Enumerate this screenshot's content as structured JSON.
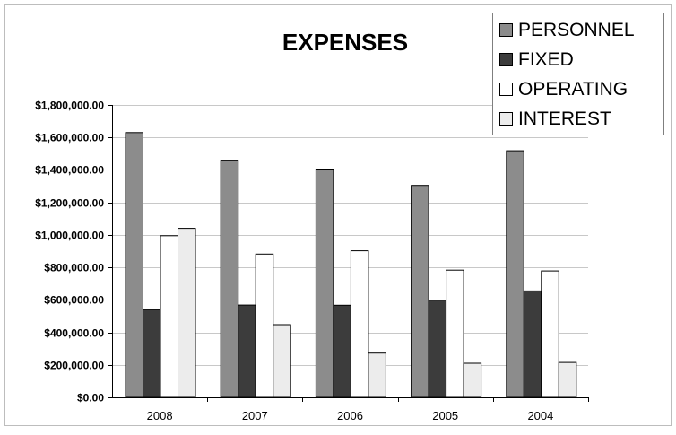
{
  "chart_data": {
    "type": "bar",
    "title": "EXPENSES",
    "xlabel": "",
    "ylabel": "",
    "categories": [
      "2008",
      "2007",
      "2006",
      "2005",
      "2004"
    ],
    "series": [
      {
        "name": "PERSONNEL",
        "values": [
          1630000,
          1460000,
          1405000,
          1305000,
          1518000
        ],
        "color": "#8c8c8c"
      },
      {
        "name": "FIXED",
        "values": [
          540000,
          568000,
          567000,
          598000,
          655000
        ],
        "color": "#3c3c3c"
      },
      {
        "name": "OPERATING",
        "values": [
          995000,
          882000,
          902000,
          783000,
          778000
        ],
        "color": "#ffffff"
      },
      {
        "name": "INTEREST",
        "values": [
          1040000,
          447000,
          272000,
          210000,
          215000
        ],
        "color": "#ececec"
      }
    ],
    "ylim": [
      0,
      1800000
    ],
    "yticks": [
      "$0.00",
      "$200,000.00",
      "$400,000.00",
      "$600,000.00",
      "$800,000.00",
      "$1,000,000.00",
      "$1,200,000.00",
      "$1,400,000.00",
      "$1,600,000.00",
      "$1,800,000.00"
    ],
    "grid": true,
    "legend_position": "top-right"
  }
}
